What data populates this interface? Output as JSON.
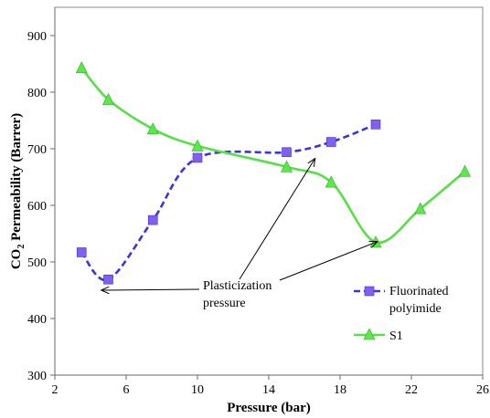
{
  "chart_data": {
    "type": "line",
    "xlabel": "Pressure (bar)",
    "ylabel": "CO2 Permeability (Barrer)",
    "xlim": [
      2,
      26
    ],
    "ylim": [
      300,
      950
    ],
    "xticks": [
      2,
      6,
      10,
      14,
      18,
      22,
      26
    ],
    "yticks": [
      300,
      400,
      500,
      600,
      700,
      800,
      900
    ],
    "grid": false,
    "legend_position": "right",
    "series": [
      {
        "name": "Fluorinated polyimide",
        "color": "#3b32e0",
        "marker_color": "#8060ec",
        "line_style": "dashed",
        "marker": "square",
        "x": [
          3.5,
          5,
          7.5,
          10,
          15,
          17.5,
          20
        ],
        "y": [
          517,
          469,
          574,
          684,
          694,
          712,
          743
        ]
      },
      {
        "name": "S1",
        "color": "#55e045",
        "marker_color": "#5ae84a",
        "line_style": "solid",
        "marker": "triangle",
        "x": [
          3.5,
          5,
          7.5,
          10,
          15,
          17.5,
          20,
          22.5,
          25
        ],
        "y": [
          843,
          787,
          735,
          705,
          668,
          641,
          535,
          594,
          660
        ]
      }
    ],
    "annotation": {
      "text_lines": [
        "Plasticization",
        "pressure"
      ],
      "arrow_targets": [
        {
          "x": 4.6,
          "y": 450
        },
        {
          "x": 16.6,
          "y": 683
        },
        {
          "x": 20.1,
          "y": 536
        }
      ]
    }
  }
}
